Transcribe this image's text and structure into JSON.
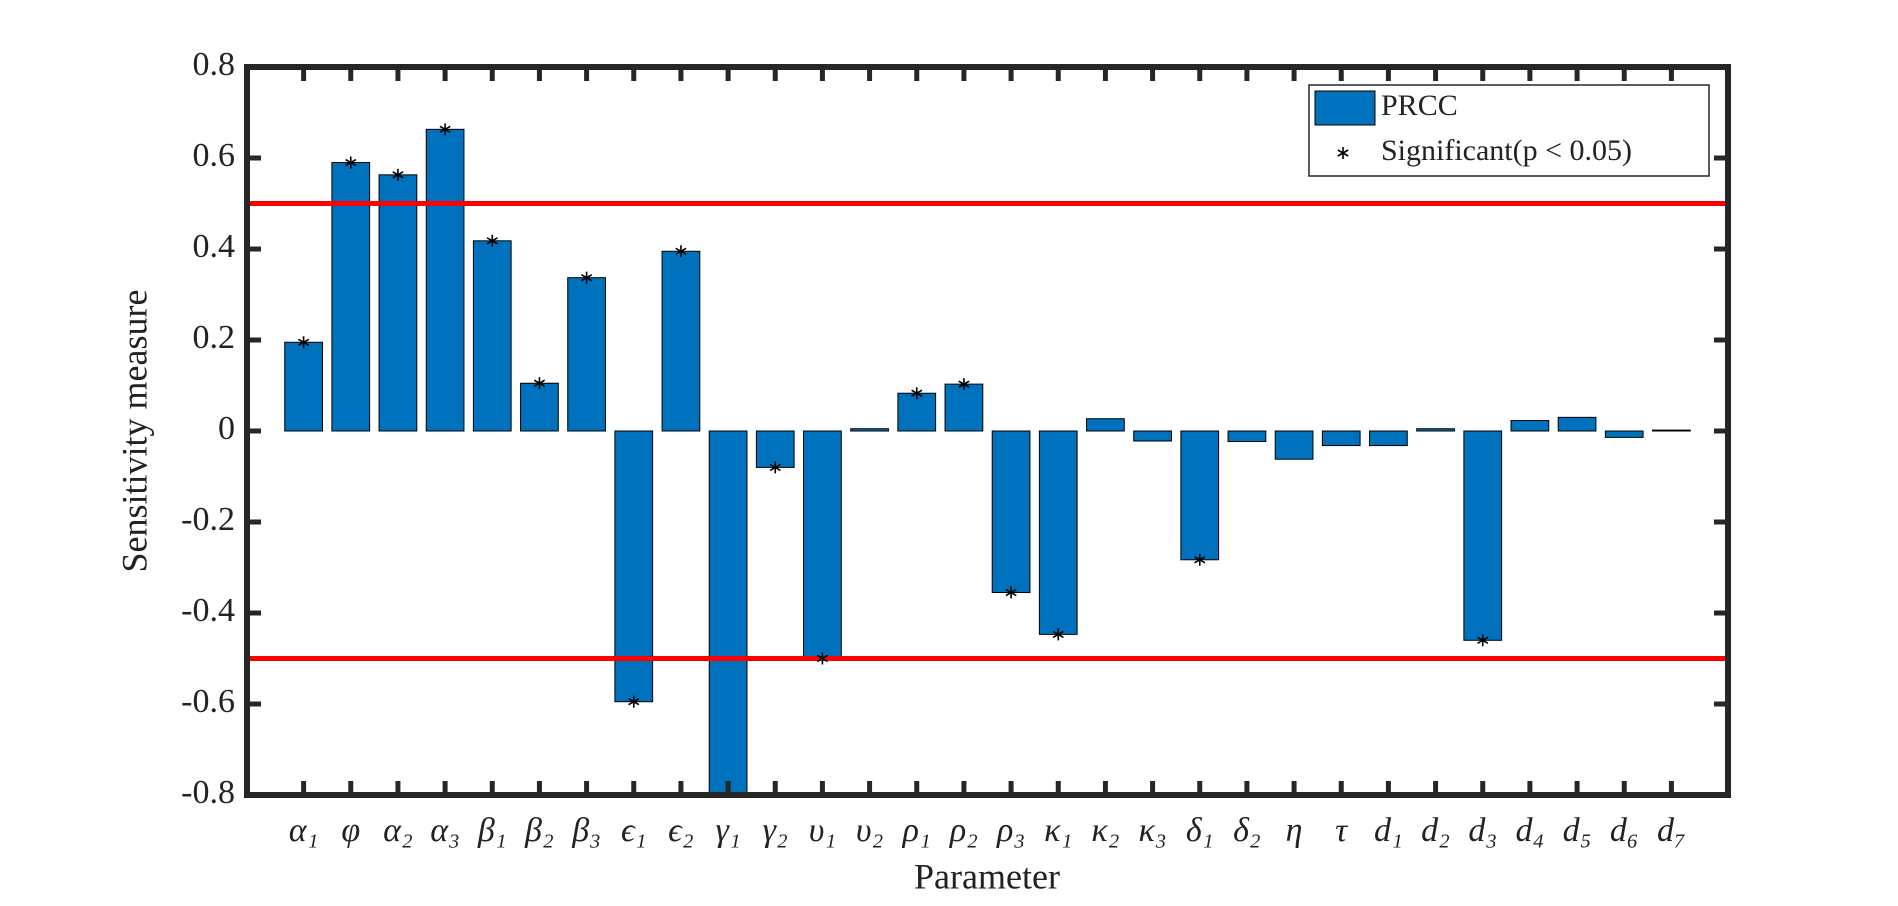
{
  "chart_data": {
    "type": "bar",
    "x_label": "Parameter",
    "y_label": "Sensitivity measure",
    "categories": [
      "α₁",
      "φ",
      "α₂",
      "α₃",
      "β₁",
      "β₂",
      "β₃",
      "ϵ₁",
      "ϵ₂",
      "γ₁",
      "γ₂",
      "υ₁",
      "υ₂",
      "ρ₁",
      "ρ₂",
      "ρ₃",
      "κ₁",
      "κ₂",
      "κ₃",
      "δ₁",
      "δ₂",
      "η",
      "τ",
      "d₁",
      "d₂",
      "d₃",
      "d₄",
      "d₅",
      "d₆",
      "d₇"
    ],
    "series": [
      {
        "name": "PRCC",
        "color": "#0072bd",
        "values": [
          0.195,
          0.59,
          0.563,
          0.663,
          0.418,
          0.105,
          0.337,
          -0.595,
          0.395,
          -0.8,
          -0.08,
          -0.5,
          0.005,
          0.083,
          0.103,
          -0.355,
          -0.447,
          0.027,
          -0.022,
          -0.283,
          -0.023,
          -0.062,
          -0.032,
          -0.032,
          0.005,
          -0.46,
          0.023,
          0.03,
          -0.014,
          0.002
        ]
      },
      {
        "name": "Significant(p < 0.05)",
        "color": "#000000",
        "marker": "star",
        "values": [
          0.195,
          0.59,
          0.563,
          0.663,
          0.418,
          0.105,
          0.337,
          -0.595,
          0.395,
          null,
          -0.08,
          -0.5,
          null,
          0.083,
          0.103,
          -0.355,
          -0.447,
          null,
          null,
          -0.283,
          null,
          null,
          null,
          null,
          null,
          -0.46,
          null,
          null,
          null,
          null
        ]
      }
    ],
    "reference_lines": [
      0.5,
      -0.5
    ],
    "reference_color": "#ff0000",
    "ylim": [
      -0.8,
      0.8
    ],
    "yticks": [
      -0.8,
      -0.6,
      -0.4,
      -0.2,
      0,
      0.2,
      0.4,
      0.6,
      0.8
    ],
    "legend": "upper right"
  }
}
